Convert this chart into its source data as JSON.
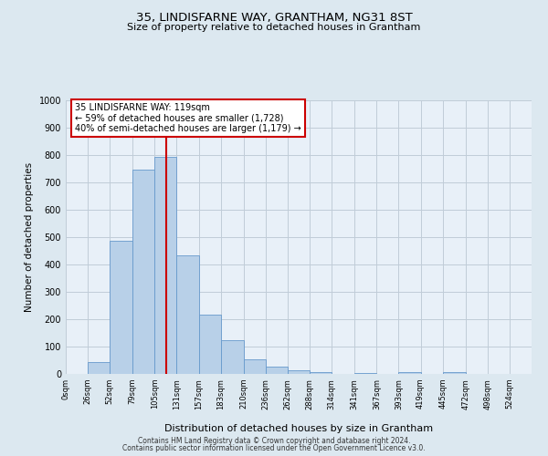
{
  "title": "35, LINDISFARNE WAY, GRANTHAM, NG31 8ST",
  "subtitle": "Size of property relative to detached houses in Grantham",
  "xlabel": "Distribution of detached houses by size in Grantham",
  "ylabel": "Number of detached properties",
  "bar_labels": [
    "0sqm",
    "26sqm",
    "52sqm",
    "79sqm",
    "105sqm",
    "131sqm",
    "157sqm",
    "183sqm",
    "210sqm",
    "236sqm",
    "262sqm",
    "288sqm",
    "314sqm",
    "341sqm",
    "367sqm",
    "393sqm",
    "419sqm",
    "445sqm",
    "472sqm",
    "498sqm",
    "524sqm"
  ],
  "bar_values": [
    0,
    42,
    487,
    747,
    793,
    435,
    218,
    125,
    52,
    27,
    14,
    8,
    0,
    5,
    0,
    8,
    0,
    7,
    0,
    0,
    0
  ],
  "bar_color": "#b8d0e8",
  "bar_edge_color": "#6699cc",
  "vline_x": 119,
  "vline_color": "#cc0000",
  "bin_edges": [
    0,
    26,
    52,
    79,
    105,
    131,
    157,
    183,
    210,
    236,
    262,
    288,
    314,
    341,
    367,
    393,
    419,
    445,
    472,
    498,
    524,
    550
  ],
  "ylim": [
    0,
    1000
  ],
  "yticks": [
    0,
    100,
    200,
    300,
    400,
    500,
    600,
    700,
    800,
    900,
    1000
  ],
  "annotation_line1": "35 LINDISFARNE WAY: 119sqm",
  "annotation_line2": "← 59% of detached houses are smaller (1,728)",
  "annotation_line3": "40% of semi-detached houses are larger (1,179) →",
  "annotation_box_color": "#ffffff",
  "annotation_box_edge": "#cc0000",
  "footer_line1": "Contains HM Land Registry data © Crown copyright and database right 2024.",
  "footer_line2": "Contains public sector information licensed under the Open Government Licence v3.0.",
  "bg_color": "#dce8f0",
  "plot_bg_color": "#e8f0f8",
  "grid_color": "#c0ccd8"
}
